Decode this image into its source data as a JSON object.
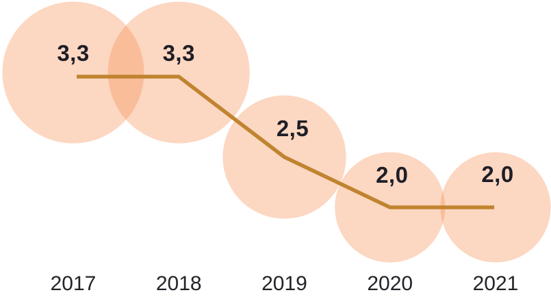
{
  "chart_data": {
    "type": "line",
    "subtype": "line-with-area-proportional-bubble-markers",
    "title": "",
    "xlabel": "",
    "ylabel": "",
    "categories": [
      "2017",
      "2018",
      "2019",
      "2020",
      "2021"
    ],
    "values": [
      3.3,
      3.3,
      2.5,
      2.0,
      2.0
    ],
    "value_labels": [
      "3,3",
      "3,3",
      "2,5",
      "2,0",
      "2,0"
    ],
    "value_range_shown": [
      2.0,
      3.3
    ],
    "grid": false,
    "legend": "none",
    "colors": {
      "bubble_fill": "rgba(246,140,80,0.35)",
      "line": "#c08430",
      "value_text": "#1e1e26",
      "axis_text": "#232329",
      "background": "#ffffff"
    }
  }
}
